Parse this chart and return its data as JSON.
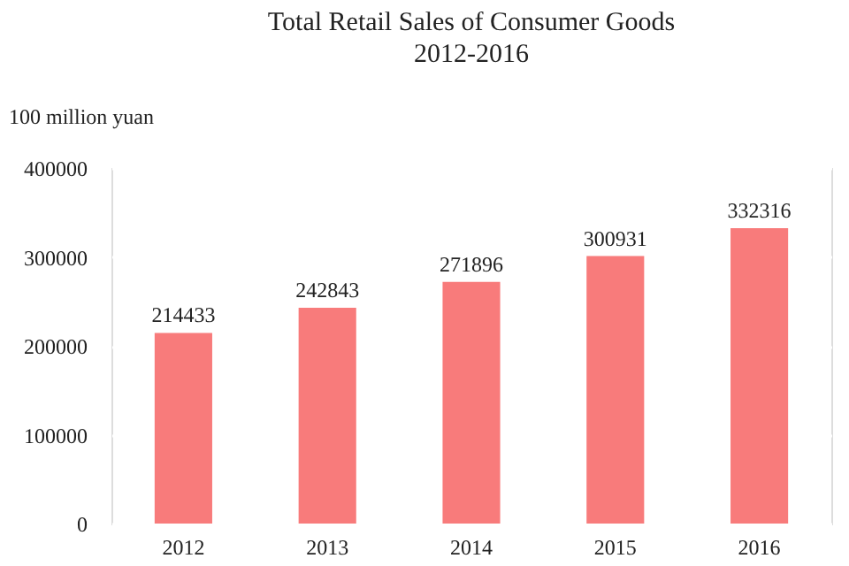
{
  "chart_data": {
    "type": "bar",
    "title": "Total Retail Sales of Consumer Goods",
    "subtitle": "2012-2016",
    "ylabel": "100 million yuan",
    "categories": [
      "2012",
      "2013",
      "2014",
      "2015",
      "2016"
    ],
    "values": [
      214433,
      242843,
      271896,
      300931,
      332316
    ],
    "color": "#f87b7b",
    "ylim": [
      0,
      400000
    ],
    "yticks": [
      0,
      100000,
      200000,
      300000,
      400000
    ],
    "grid": "y",
    "data_labels": true
  }
}
